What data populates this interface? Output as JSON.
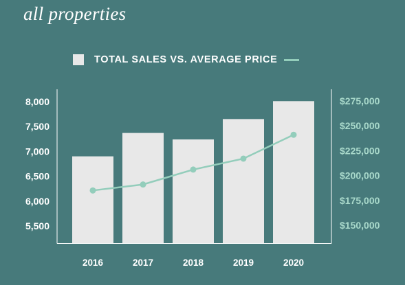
{
  "page": {
    "title": "all properties"
  },
  "legend": {
    "bar_swatch": "bar-swatch",
    "label": "TOTAL SALES VS. AVERAGE PRICE",
    "line_swatch": "line-swatch"
  },
  "colors": {
    "background": "#477A7B",
    "bars": "#E8E8E8",
    "line": "#93CDBB",
    "left_axis_text": "#FFFFFF",
    "right_axis_text": "#A9D9CB"
  },
  "chart_data": {
    "type": "bar",
    "categories": [
      "2016",
      "2017",
      "2018",
      "2019",
      "2020"
    ],
    "series": [
      {
        "name": "TOTAL SALES",
        "type": "bar",
        "axis": "left",
        "values": [
          6900,
          7370,
          7240,
          7650,
          8010
        ]
      },
      {
        "name": "AVERAGE PRICE",
        "type": "line",
        "axis": "right",
        "values": [
          185000,
          191000,
          206000,
          217000,
          241000
        ]
      }
    ],
    "y_left": {
      "ticks": [
        5500,
        6000,
        6500,
        7000,
        7500,
        8000
      ],
      "tick_labels": [
        "5,500",
        "6,000",
        "6,500",
        "7,000",
        "7,500",
        "8,000"
      ]
    },
    "y_right": {
      "ticks": [
        150000,
        175000,
        200000,
        225000,
        250000,
        275000
      ],
      "tick_labels": [
        "$150,000",
        "$175,000",
        "$200,000",
        "$225,000",
        "$250,000",
        "$275,000"
      ]
    },
    "grid": false,
    "legend_position": "top"
  }
}
